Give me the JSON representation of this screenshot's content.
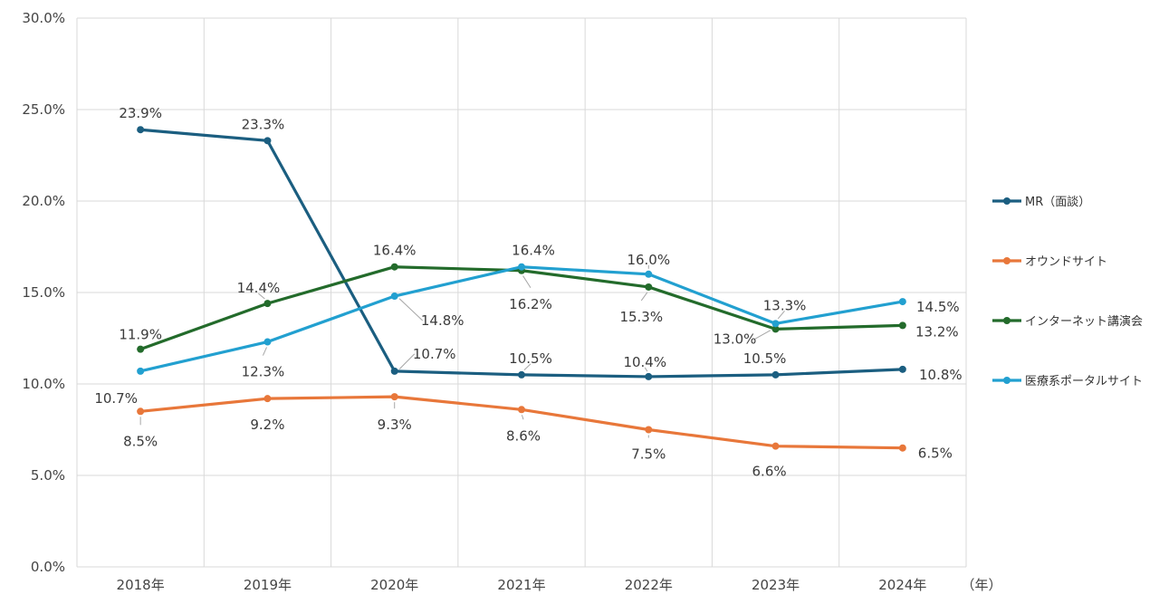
{
  "chart_data": {
    "type": "line",
    "categories": [
      "2018年",
      "2019年",
      "2020年",
      "2021年",
      "2022年",
      "2023年",
      "2024年"
    ],
    "x_unit_label": "（年）",
    "ylim": [
      0,
      30
    ],
    "yticks": [
      "0.0%",
      "5.0%",
      "10.0%",
      "15.0%",
      "20.0%",
      "25.0%",
      "30.0%"
    ],
    "grid": true,
    "legend_position": "right",
    "series": [
      {
        "name": "MR（面談）",
        "color": "#1b5e80",
        "values": [
          23.9,
          23.3,
          10.7,
          10.5,
          10.4,
          10.5,
          10.8
        ],
        "labels": [
          "23.9%",
          "23.3%",
          "10.7%",
          "10.5%",
          "10.4%",
          "10.5%",
          "10.8%"
        ]
      },
      {
        "name": "オウンドサイト",
        "color": "#e8773a",
        "values": [
          8.5,
          9.2,
          9.3,
          8.6,
          7.5,
          6.6,
          6.5
        ],
        "labels": [
          "8.5%",
          "9.2%",
          "9.3%",
          "8.6%",
          "7.5%",
          "6.6%",
          "6.5%"
        ]
      },
      {
        "name": "インターネット講演会",
        "color": "#236b2b",
        "values": [
          11.9,
          14.4,
          16.4,
          16.2,
          15.3,
          13.0,
          13.2
        ],
        "labels": [
          "11.9%",
          "14.4%",
          "16.4%",
          "16.2%",
          "15.3%",
          "13.0%",
          "13.2%"
        ]
      },
      {
        "name": "医療系ポータルサイト",
        "color": "#22a0d0",
        "values": [
          10.7,
          12.3,
          14.8,
          16.4,
          16.0,
          13.3,
          14.5
        ],
        "labels": [
          "10.7%",
          "12.3%",
          "14.8%",
          "16.4%",
          "16.0%",
          "13.3%",
          "14.5%"
        ]
      }
    ]
  }
}
